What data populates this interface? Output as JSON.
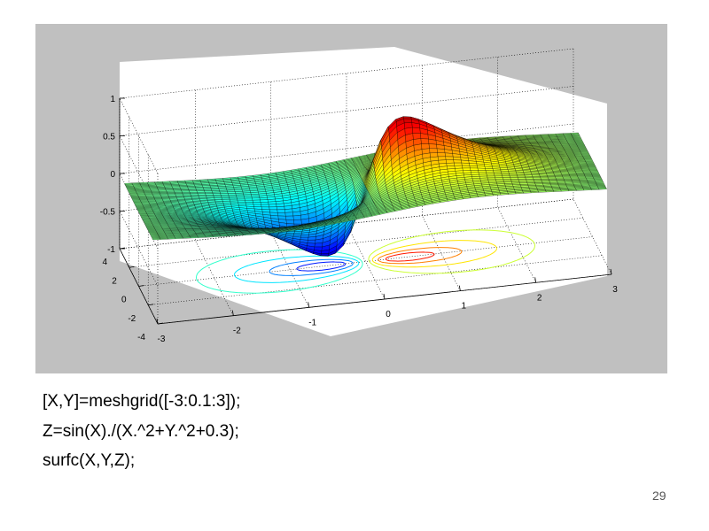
{
  "slide": {
    "page_number": "29",
    "code_lines": [
      "[X,Y]=meshgrid([-3:0.1:3]);",
      "Z=sin(X)./(X.^2+Y.^2+0.3);",
      "surfc(X,Y,Z);"
    ]
  },
  "chart_data": {
    "type": "surface",
    "title": "",
    "function": "Z=sin(X)./(X.^2+Y.^2+0.3)",
    "x_range": [
      -3,
      3
    ],
    "y_range": [
      -3,
      3
    ],
    "step": 0.1,
    "contours_below": true,
    "colormap": "jet",
    "grid": true,
    "axes": {
      "x": {
        "lim": [
          -3,
          3
        ],
        "ticks": [
          "-3",
          "-2",
          "-1",
          "0",
          "1",
          "2",
          "3"
        ]
      },
      "y": {
        "lim": [
          -4,
          4
        ],
        "ticks": [
          "-4",
          "-2",
          "0",
          "2",
          "4"
        ]
      },
      "z": {
        "lim": [
          -1,
          1
        ],
        "ticks": [
          "-1",
          "-0.5",
          "0",
          "0.5",
          "1"
        ]
      }
    },
    "colors": {
      "background": "#c0c0c0",
      "axes_box": "#ffffff",
      "grid": "#000000"
    }
  }
}
